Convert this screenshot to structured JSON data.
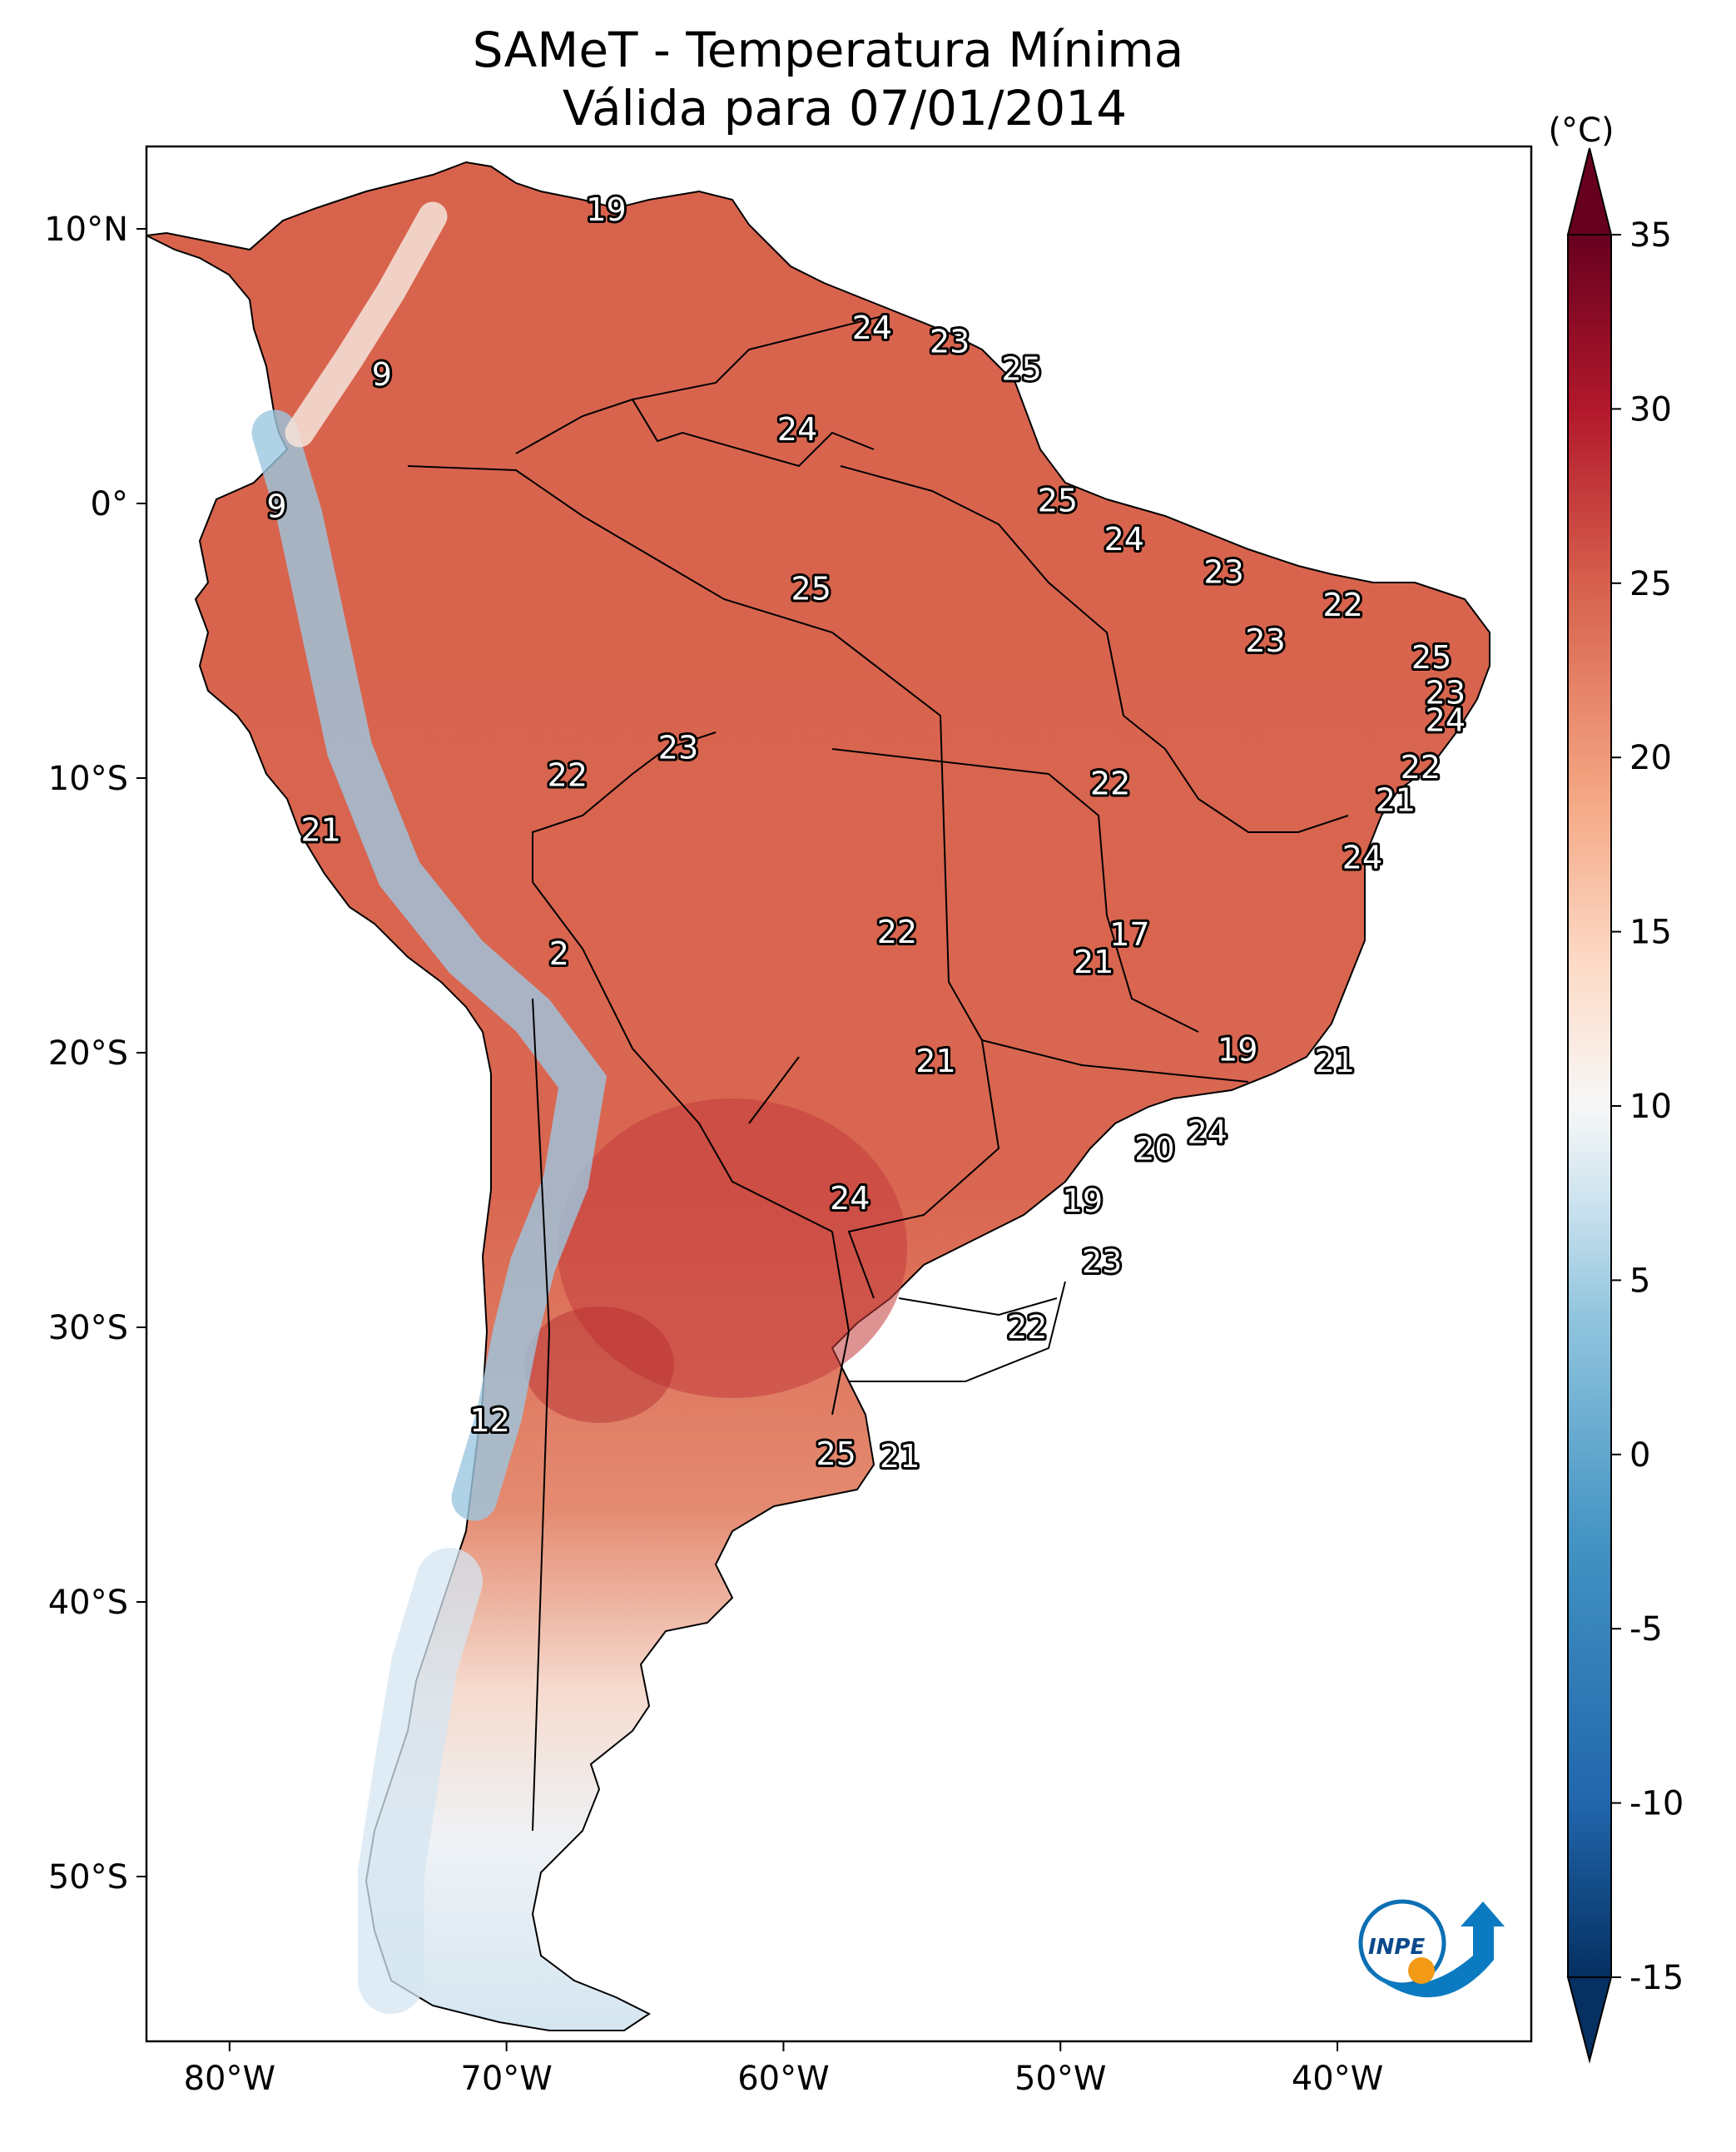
{
  "title": {
    "line1": "SAMeT - Temperatura Mínima",
    "line2": "Válida para 07/01/2014"
  },
  "map": {
    "projection": "Plate Carrée (lon/lat)",
    "lon_range": [
      -83,
      -33
    ],
    "lat_range": [
      -56,
      13
    ],
    "lat_ticks": [
      {
        "lat": 10,
        "label": "10°N"
      },
      {
        "lat": 0,
        "label": "0°"
      },
      {
        "lat": -10,
        "label": "10°S"
      },
      {
        "lat": -20,
        "label": "20°S"
      },
      {
        "lat": -30,
        "label": "30°S"
      },
      {
        "lat": -40,
        "label": "40°S"
      },
      {
        "lat": -50,
        "label": "50°S"
      }
    ],
    "lon_ticks": [
      {
        "lon": -80,
        "label": "80°W"
      },
      {
        "lon": -70,
        "label": "70°W"
      },
      {
        "lon": -60,
        "label": "60°W"
      },
      {
        "lon": -50,
        "label": "50°W"
      },
      {
        "lon": -40,
        "label": "40°W"
      }
    ],
    "point_labels": [
      {
        "lon": -66.4,
        "lat": 10.7,
        "value": "19"
      },
      {
        "lon": -74.5,
        "lat": 4.7,
        "value": "9"
      },
      {
        "lon": -78.3,
        "lat": -0.1,
        "value": "9"
      },
      {
        "lon": -56.8,
        "lat": 6.4,
        "value": "24"
      },
      {
        "lon": -54.0,
        "lat": 5.9,
        "value": "23"
      },
      {
        "lon": -51.4,
        "lat": 4.9,
        "value": "25"
      },
      {
        "lon": -59.5,
        "lat": 2.7,
        "value": "24"
      },
      {
        "lon": -50.1,
        "lat": 0.1,
        "value": "25"
      },
      {
        "lon": -47.7,
        "lat": -1.3,
        "value": "24"
      },
      {
        "lon": -59.0,
        "lat": -3.1,
        "value": "25"
      },
      {
        "lon": -44.1,
        "lat": -2.5,
        "value": "23"
      },
      {
        "lon": -42.6,
        "lat": -5.0,
        "value": "23"
      },
      {
        "lon": -39.8,
        "lat": -3.7,
        "value": "22"
      },
      {
        "lon": -36.6,
        "lat": -5.6,
        "value": "25"
      },
      {
        "lon": -36.1,
        "lat": -6.9,
        "value": "23"
      },
      {
        "lon": -36.1,
        "lat": -7.9,
        "value": "24"
      },
      {
        "lon": -37.0,
        "lat": -9.6,
        "value": "22"
      },
      {
        "lon": -37.9,
        "lat": -10.8,
        "value": "21"
      },
      {
        "lon": -63.8,
        "lat": -8.9,
        "value": "23"
      },
      {
        "lon": -67.8,
        "lat": -9.9,
        "value": "22"
      },
      {
        "lon": -48.2,
        "lat": -10.2,
        "value": "22"
      },
      {
        "lon": -76.7,
        "lat": -11.9,
        "value": "21"
      },
      {
        "lon": -39.1,
        "lat": -12.9,
        "value": "24"
      },
      {
        "lon": -68.1,
        "lat": -16.4,
        "value": "2"
      },
      {
        "lon": -55.9,
        "lat": -15.6,
        "value": "22"
      },
      {
        "lon": -47.5,
        "lat": -15.7,
        "value": "17"
      },
      {
        "lon": -48.8,
        "lat": -16.7,
        "value": "21"
      },
      {
        "lon": -43.6,
        "lat": -19.9,
        "value": "19"
      },
      {
        "lon": -54.5,
        "lat": -20.3,
        "value": "21"
      },
      {
        "lon": -40.1,
        "lat": -20.3,
        "value": "21"
      },
      {
        "lon": -44.7,
        "lat": -22.9,
        "value": "24"
      },
      {
        "lon": -46.6,
        "lat": -23.5,
        "value": "20"
      },
      {
        "lon": -57.6,
        "lat": -25.3,
        "value": "24"
      },
      {
        "lon": -49.2,
        "lat": -25.4,
        "value": "19"
      },
      {
        "lon": -48.5,
        "lat": -27.6,
        "value": "23"
      },
      {
        "lon": -51.2,
        "lat": -30.0,
        "value": "22"
      },
      {
        "lon": -70.6,
        "lat": -33.4,
        "value": "12"
      },
      {
        "lon": -58.1,
        "lat": -34.6,
        "value": "25"
      },
      {
        "lon": -55.8,
        "lat": -34.7,
        "value": "21"
      }
    ]
  },
  "colorbar": {
    "unit": "(°C)",
    "min": -15,
    "max": 35,
    "extend": "both",
    "ticks": [
      "35",
      "30",
      "25",
      "20",
      "15",
      "10",
      "5",
      "0",
      "-5",
      "-10",
      "-15"
    ],
    "colors": [
      "#053061",
      "#2166ac",
      "#4393c3",
      "#92c5de",
      "#d1e5f0",
      "#f7f7f7",
      "#fddbc7",
      "#f4a582",
      "#d6604d",
      "#b2182b",
      "#67001f"
    ]
  },
  "logo": {
    "text": "INPE"
  }
}
